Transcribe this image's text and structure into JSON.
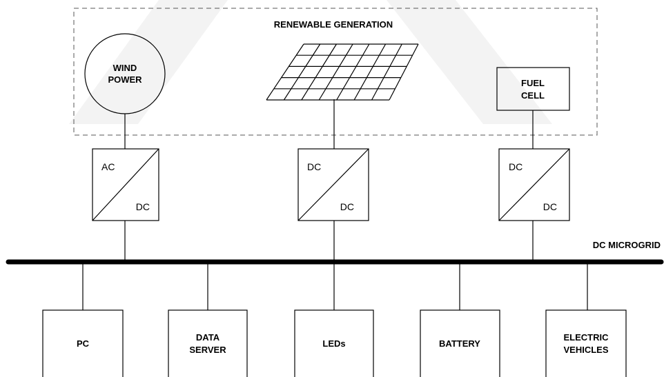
{
  "group": {
    "title": "RENEWABLE GENERATION"
  },
  "sources": [
    {
      "label": [
        "WIND",
        "POWER"
      ]
    },
    {
      "label": [
        "FUEL",
        "CELL"
      ]
    }
  ],
  "converters": [
    {
      "input": "AC",
      "output": "DC"
    },
    {
      "input": "DC",
      "output": "DC"
    },
    {
      "input": "DC",
      "output": "DC"
    }
  ],
  "bus": {
    "label": "DC MICROGRID"
  },
  "loads": [
    {
      "label": [
        "PC"
      ]
    },
    {
      "label": [
        "DATA",
        "SERVER"
      ]
    },
    {
      "label": [
        "LEDs"
      ]
    },
    {
      "label": [
        "BATTERY"
      ]
    },
    {
      "label": [
        "ELECTRIC",
        "VEHICLES"
      ]
    }
  ]
}
